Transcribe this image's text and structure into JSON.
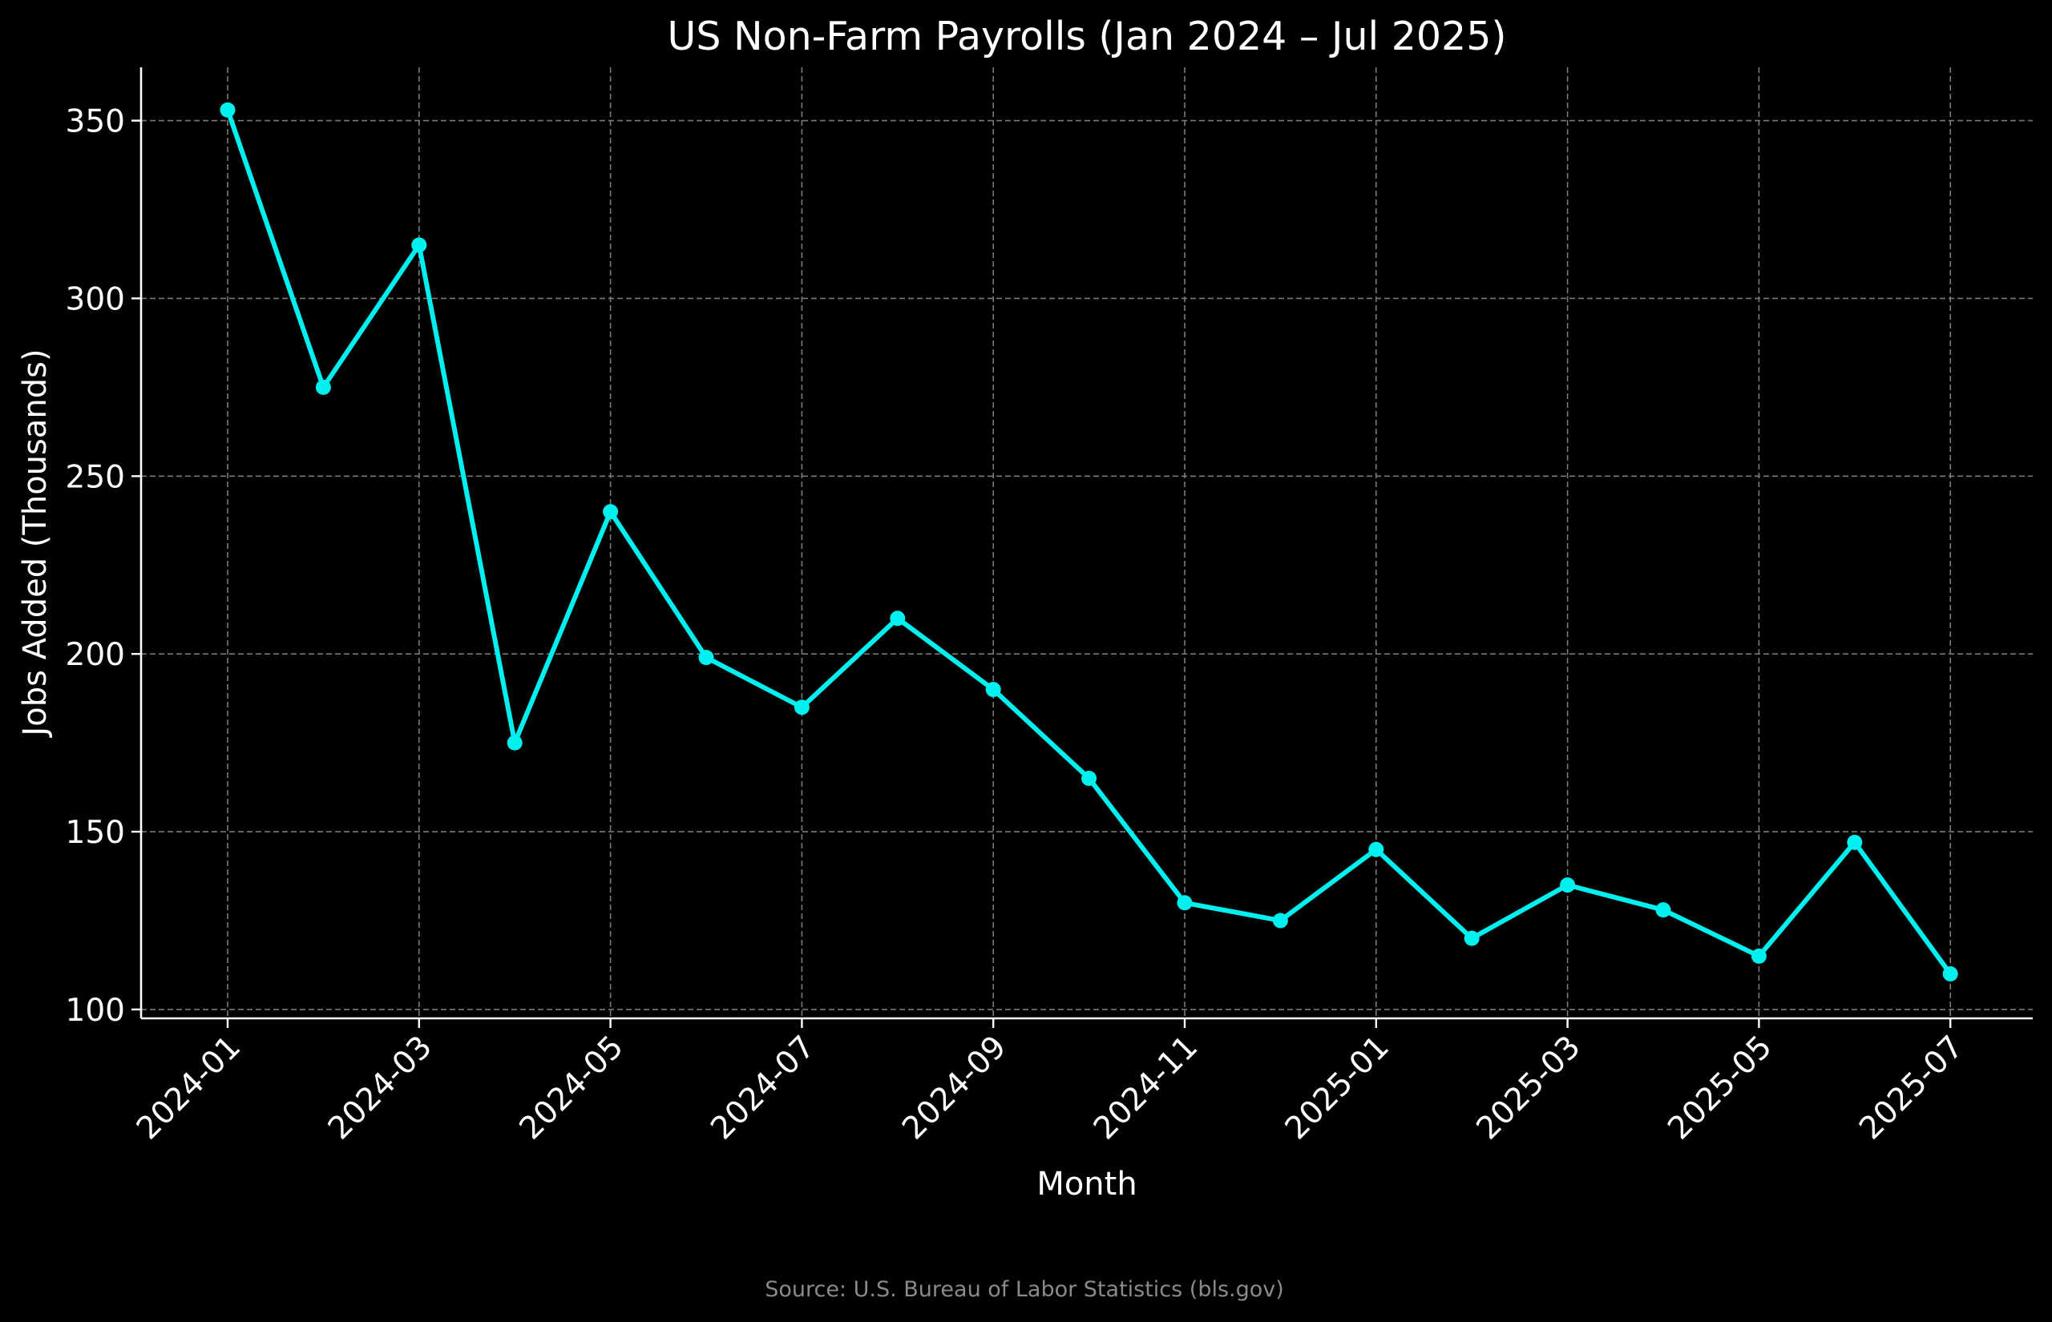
{
  "chart_data": {
    "type": "line",
    "title": "US Non-Farm Payrolls (Jan 2024 – Jul 2025)",
    "xlabel": "Month",
    "ylabel": "Jobs Added (Thousands)",
    "source": "Source: U.S. Bureau of Labor Statistics (bls.gov)",
    "x": [
      "2024-01",
      "2024-02",
      "2024-03",
      "2024-04",
      "2024-05",
      "2024-06",
      "2024-07",
      "2024-08",
      "2024-09",
      "2024-10",
      "2024-11",
      "2024-12",
      "2025-01",
      "2025-02",
      "2025-03",
      "2025-04",
      "2025-05",
      "2025-06",
      "2025-07"
    ],
    "series": [
      {
        "values": [
          353,
          275,
          315,
          175,
          240,
          199,
          185,
          210,
          190,
          165,
          130,
          125,
          145,
          120,
          135,
          128,
          115,
          147,
          110
        ]
      }
    ],
    "x_ticks": [
      "2024-01",
      "2024-03",
      "2024-05",
      "2024-07",
      "2024-09",
      "2024-11",
      "2025-01",
      "2025-03",
      "2025-05",
      "2025-07"
    ],
    "y_ticks": [
      100,
      150,
      200,
      250,
      300,
      350
    ],
    "ylim": [
      97.5,
      365
    ],
    "grid": true,
    "legend": "none",
    "colors": {
      "background": "#000000",
      "line": "#00efef",
      "text": "#ffffff",
      "grid": "#7a7a7a",
      "source": "#8a8a8a"
    }
  }
}
